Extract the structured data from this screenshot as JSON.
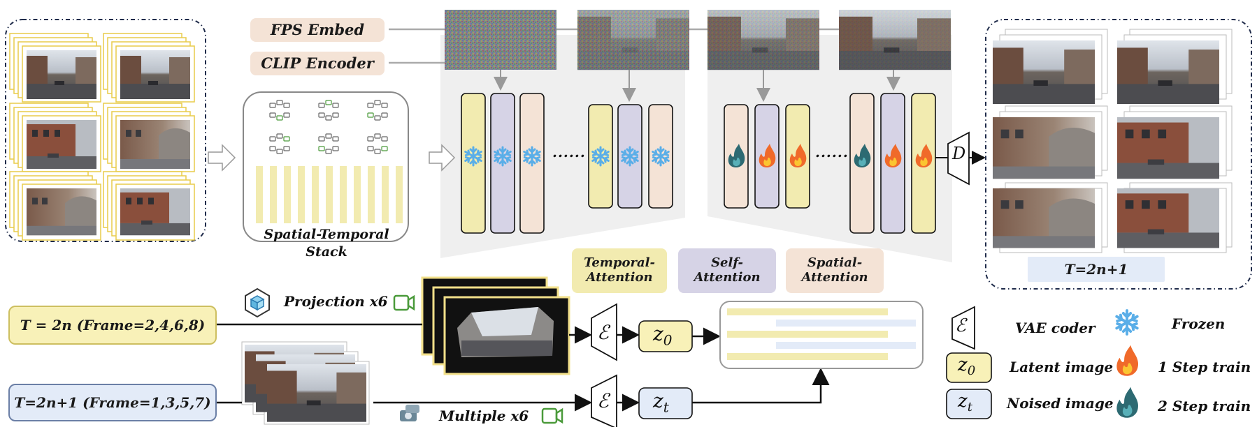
{
  "embeds": {
    "fps": "FPS Embed",
    "clip": "CLIP Encoder"
  },
  "stack_label": "Spatial-Temporal Stack",
  "dots_1": "......",
  "dots_2": "......",
  "decoder_symbol": "D",
  "attention_legend": {
    "temporal": "Temporal-Attention",
    "self": "Self-Attention",
    "spatial": "Spatial-Attention"
  },
  "output_label": "T=2n+1",
  "inputs": {
    "even": "T = 2n (Frame=2,4,6,8)",
    "odd": "T=2n+1 (Frame=1,3,5,7)"
  },
  "projection_label": "Projection x6",
  "multiple_label": "Multiple x6",
  "encoder_symbol": "ℰ",
  "latents": {
    "z0": "z",
    "z0_sub": "0",
    "zt": "z",
    "zt_sub": "t"
  },
  "legend": {
    "vae_symbol": "ℰ",
    "vae": "VAE coder",
    "frozen": "Frozen",
    "latent_symbol": "z",
    "latent_sub": "0",
    "latent": "Latent image",
    "one_step": "1 Step train",
    "noised_symbol": "z",
    "noised_sub": "t",
    "noised": "Noised image",
    "two_step": "2 Step train"
  },
  "colors": {
    "yellow": "#f2ebb0",
    "purple": "#d6d3e6",
    "peach": "#f4e3d6",
    "blue_fill": "#e3ebf8",
    "yellow_pill": "#f8f1b8",
    "frame_dark": "#1f2b4a",
    "snow": "#5aaee8",
    "fire": "#f06a2a",
    "fire_dark": "#2d6a72",
    "green_icon": "#4a9a3a"
  }
}
